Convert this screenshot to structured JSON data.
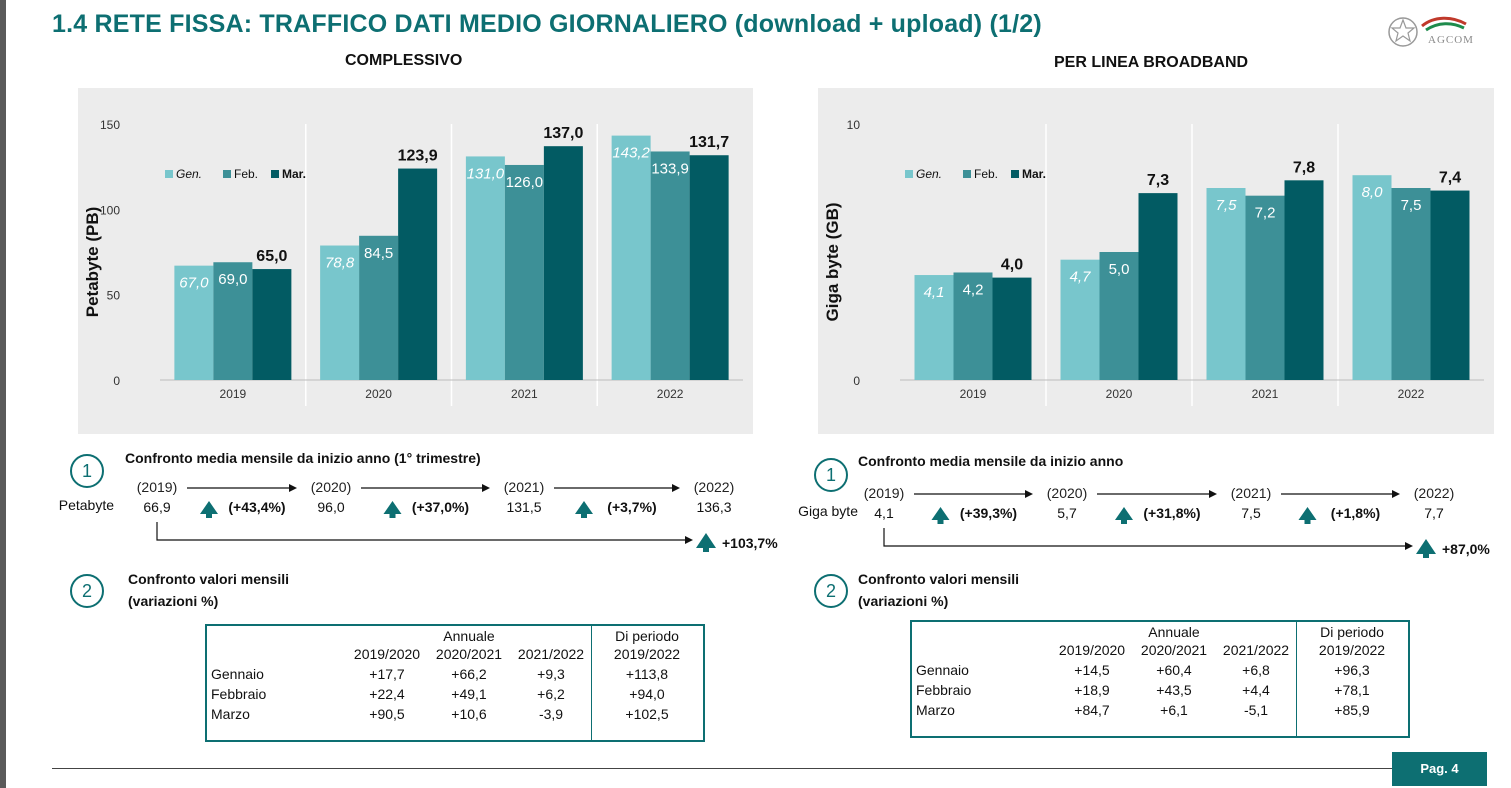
{
  "page": {
    "title": "1.4 RETE FISSA: TRAFFICO DATI MEDIO GIORNALIERO (download + upload) (1/2)",
    "logo_text": "AGCOM",
    "page_number": "Pag. 4"
  },
  "left": {
    "subtitle": "COMPLESSIVO",
    "comparison_title": "Confronto media mensile da inizio anno (1° trimestre)",
    "table_title_line1": "Confronto valori mensili",
    "table_title_line2": "(variazioni %)"
  },
  "right": {
    "subtitle": "PER LINEA BROADBAND",
    "comparison_title": "Confronto media mensile da inizio anno",
    "table_title_line1": "Confronto valori mensili",
    "table_title_line2": "(variazioni %)"
  },
  "circle_labels": [
    "1",
    "2"
  ],
  "colors": {
    "accent": "#0d6f72",
    "gen": "#78c6cc",
    "feb": "#3d9097",
    "mar": "#025b63",
    "panel": "#ececec"
  },
  "chart_data": [
    {
      "type": "bar",
      "ylabel": "Petabyte (PB)",
      "ylim": [
        0,
        150
      ],
      "yticks": [
        "0",
        "50",
        "100",
        "150"
      ],
      "ytick_values": [
        0,
        50,
        100,
        150
      ],
      "categories": [
        "2019",
        "2020",
        "2021",
        "2022"
      ],
      "legend_position": "top-left",
      "series": [
        {
          "name": "Gen.",
          "values": [
            67.0,
            78.8,
            131.0,
            143.2
          ],
          "labels": [
            "67,0",
            "78,8",
            "131,0",
            "143,2"
          ]
        },
        {
          "name": "Feb.",
          "values": [
            69.0,
            84.5,
            126.0,
            133.9
          ],
          "labels": [
            "69,0",
            "84,5",
            "126,0",
            "133,9"
          ]
        },
        {
          "name": "Mar.",
          "values": [
            65.0,
            123.9,
            137.0,
            131.7
          ],
          "labels": [
            "65,0",
            "123,9",
            "137,0",
            "131,7"
          ]
        }
      ]
    },
    {
      "type": "bar",
      "ylabel": "Giga byte (GB)",
      "ylim": [
        0,
        10
      ],
      "yticks": [
        "0",
        "10"
      ],
      "ytick_values": [
        0,
        10
      ],
      "categories": [
        "2019",
        "2020",
        "2021",
        "2022"
      ],
      "legend_position": "top-left",
      "series": [
        {
          "name": "Gen.",
          "values": [
            4.1,
            4.7,
            7.5,
            8.0
          ],
          "labels": [
            "4,1",
            "4,7",
            "7,5",
            "8,0"
          ]
        },
        {
          "name": "Feb.",
          "values": [
            4.2,
            5.0,
            7.2,
            7.5
          ],
          "labels": [
            "4,2",
            "5,0",
            "7,2",
            "7,5"
          ]
        },
        {
          "name": "Mar.",
          "values": [
            4.0,
            7.3,
            7.8,
            7.4
          ],
          "labels": [
            "4,0",
            "7,3",
            "7,8",
            "7,4"
          ]
        }
      ]
    }
  ],
  "comparison": [
    {
      "unit_label": "Petabyte",
      "years": [
        "(2019)",
        "(2020)",
        "(2021)",
        "(2022)"
      ],
      "values": [
        "66,9",
        "96,0",
        "131,5",
        "136,3"
      ],
      "changes": [
        "(+43,4%)",
        "(+37,0%)",
        "(+3,7%)"
      ],
      "total_change": "+103,7%"
    },
    {
      "unit_label": "Giga byte",
      "years": [
        "(2019)",
        "(2020)",
        "(2021)",
        "(2022)"
      ],
      "values": [
        "4,1",
        "5,7",
        "7,5",
        "7,7"
      ],
      "changes": [
        "(+39,3%)",
        "(+31,8%)",
        "(+1,8%)"
      ],
      "total_change": "+87,0%"
    }
  ],
  "tables": [
    {
      "group_header": "Annuale",
      "period_header_line1": "Di periodo",
      "period_header_line2": "2019/2022",
      "columns": [
        "2019/2020",
        "2020/2021",
        "2021/2022"
      ],
      "rows": [
        {
          "label": "Gennaio",
          "values": [
            "+17,7",
            "+66,2",
            "+9,3"
          ],
          "period": "+113,8"
        },
        {
          "label": "Febbraio",
          "values": [
            "+22,4",
            "+49,1",
            "+6,2"
          ],
          "period": "+94,0"
        },
        {
          "label": "Marzo",
          "values": [
            "+90,5",
            "+10,6",
            "-3,9"
          ],
          "period": "+102,5"
        }
      ]
    },
    {
      "group_header": "Annuale",
      "period_header_line1": "Di periodo",
      "period_header_line2": "2019/2022",
      "columns": [
        "2019/2020",
        "2020/2021",
        "2021/2022"
      ],
      "rows": [
        {
          "label": "Gennaio",
          "values": [
            "+14,5",
            "+60,4",
            "+6,8"
          ],
          "period": "+96,3"
        },
        {
          "label": "Febbraio",
          "values": [
            "+18,9",
            "+43,5",
            "+4,4"
          ],
          "period": "+78,1"
        },
        {
          "label": "Marzo",
          "values": [
            "+84,7",
            "+6,1",
            "-5,1"
          ],
          "period": "+85,9"
        }
      ]
    }
  ]
}
